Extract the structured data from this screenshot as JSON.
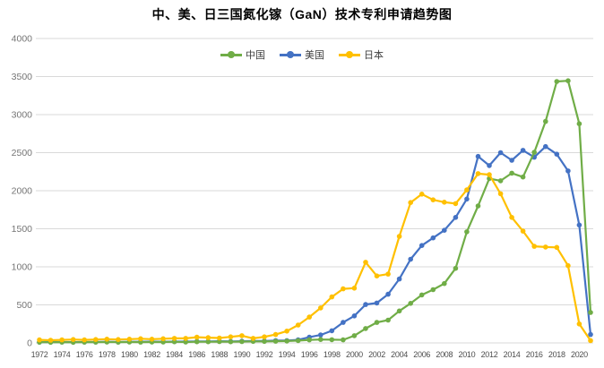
{
  "chart_data": {
    "type": "line",
    "title": "中、美、日三国氮化镓（GaN）技术专利申请趋势图",
    "xlabel": "",
    "ylabel": "",
    "ylim": [
      0,
      4000
    ],
    "y_ticks": [
      0,
      500,
      1000,
      1500,
      2000,
      2500,
      3000,
      3500,
      4000
    ],
    "grid": "horizontal",
    "legend_position": "top-center",
    "x_tick_labels": [
      "1972",
      "1974",
      "1976",
      "1978",
      "1980",
      "1982",
      "1984",
      "1986",
      "1988",
      "1990",
      "1992",
      "1994",
      "1996",
      "1998",
      "2000",
      "2002",
      "2004",
      "2006",
      "2008",
      "2010",
      "2012",
      "2014",
      "2016",
      "2018",
      "2020"
    ],
    "x": [
      1972,
      1973,
      1974,
      1975,
      1976,
      1977,
      1978,
      1979,
      1980,
      1981,
      1982,
      1983,
      1984,
      1985,
      1986,
      1987,
      1988,
      1989,
      1990,
      1991,
      1992,
      1993,
      1994,
      1995,
      1996,
      1997,
      1998,
      1999,
      2000,
      2001,
      2002,
      2003,
      2004,
      2005,
      2006,
      2007,
      2008,
      2009,
      2010,
      2011,
      2012,
      2013,
      2014,
      2015,
      2016,
      2017,
      2018,
      2019,
      2020,
      2021
    ],
    "series": [
      {
        "name": "中国",
        "color": "#70AD47",
        "values": [
          10,
          8,
          10,
          8,
          10,
          10,
          12,
          10,
          12,
          10,
          12,
          12,
          15,
          12,
          15,
          15,
          18,
          15,
          18,
          20,
          20,
          22,
          25,
          30,
          40,
          45,
          42,
          40,
          95,
          190,
          270,
          300,
          420,
          520,
          630,
          700,
          780,
          980,
          1460,
          1800,
          2160,
          2130,
          2230,
          2180,
          2505,
          2910,
          3435,
          3445,
          2880,
          400
        ]
      },
      {
        "name": "美国",
        "color": "#4472C4",
        "values": [
          10,
          10,
          12,
          10,
          12,
          12,
          15,
          12,
          15,
          15,
          18,
          15,
          18,
          18,
          20,
          20,
          22,
          20,
          22,
          25,
          25,
          30,
          30,
          40,
          75,
          105,
          160,
          270,
          355,
          505,
          525,
          640,
          840,
          1100,
          1280,
          1380,
          1480,
          1650,
          1890,
          2450,
          2330,
          2500,
          2400,
          2530,
          2440,
          2580,
          2480,
          2260,
          1550,
          110
        ]
      },
      {
        "name": "日本",
        "color": "#FFC000",
        "values": [
          40,
          35,
          40,
          45,
          40,
          45,
          50,
          45,
          50,
          55,
          50,
          55,
          60,
          60,
          75,
          70,
          65,
          80,
          95,
          60,
          80,
          110,
          155,
          235,
          340,
          460,
          605,
          710,
          720,
          1060,
          880,
          905,
          1400,
          1845,
          1955,
          1880,
          1850,
          1830,
          2010,
          2225,
          2210,
          1960,
          1650,
          1470,
          1270,
          1260,
          1255,
          1015,
          250,
          30
        ]
      }
    ],
    "axis_colors": {
      "y_tick_text": "#757575",
      "x_tick_text": "#4d4d4d",
      "gridline": "#d9d9d9"
    }
  }
}
